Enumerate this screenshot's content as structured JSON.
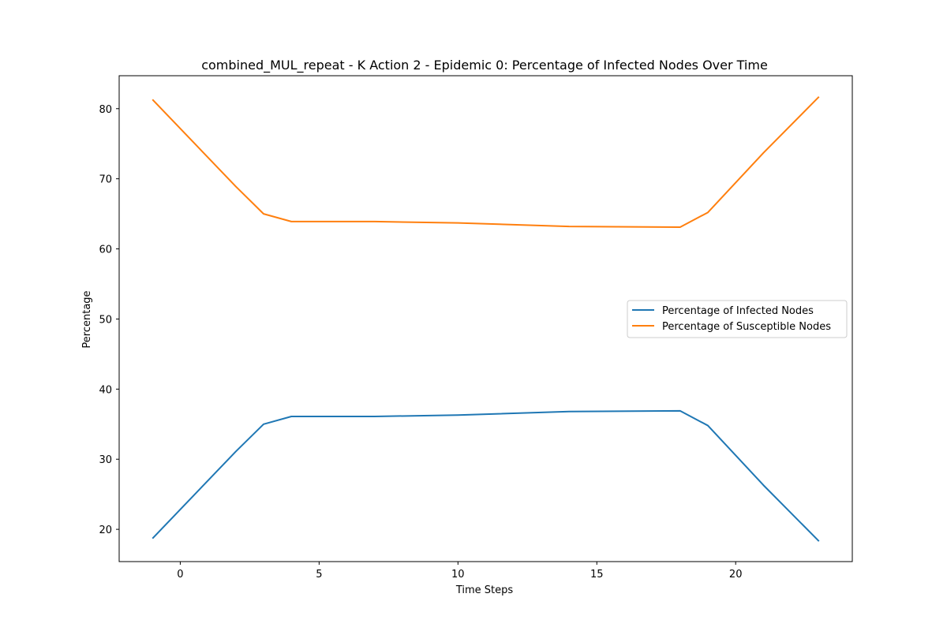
{
  "chart_data": {
    "type": "line",
    "title": "combined_MUL_repeat - K Action 2 - Epidemic 0: Percentage of Infected Nodes Over Time",
    "xlabel": "Time Steps",
    "ylabel": "Percentage",
    "xlim": [
      -2.2,
      24.2
    ],
    "ylim": [
      15.4,
      84.7
    ],
    "xticks": [
      0,
      5,
      10,
      15,
      20
    ],
    "yticks": [
      20,
      30,
      40,
      50,
      60,
      70,
      80
    ],
    "legend_position": "center-right",
    "grid": false,
    "series": [
      {
        "name": "Percentage of Infected Nodes",
        "color": "#1f77b4",
        "x": [
          -1,
          2,
          3,
          4,
          7,
          10,
          14,
          18,
          19,
          21,
          23
        ],
        "y": [
          18.7,
          31.1,
          35.0,
          36.1,
          36.1,
          36.3,
          36.8,
          36.9,
          34.8,
          26.3,
          18.3
        ]
      },
      {
        "name": "Percentage of Susceptible Nodes",
        "color": "#ff7f0e",
        "x": [
          -1,
          2,
          3,
          4,
          7,
          10,
          14,
          18,
          19,
          21,
          23
        ],
        "y": [
          81.3,
          68.9,
          65.0,
          63.9,
          63.9,
          63.7,
          63.2,
          63.1,
          65.2,
          73.7,
          81.7
        ]
      }
    ]
  }
}
